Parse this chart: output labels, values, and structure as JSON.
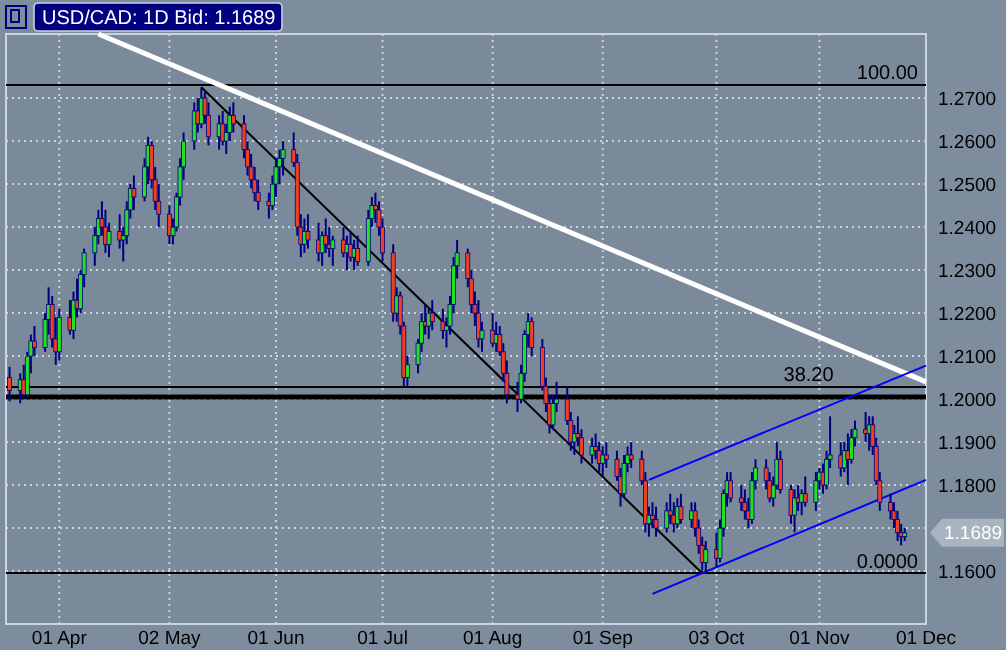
{
  "chart_data": {
    "type": "candlestick",
    "title": "USD/CAD: 1D Bid: 1.1689",
    "xlim": [
      "--03-17",
      "--12-01"
    ],
    "xticks": [
      {
        "value": "--04-01",
        "label": "01 Apr"
      },
      {
        "value": "--05-02",
        "label": "02 May"
      },
      {
        "value": "--06-01",
        "label": "01 Jun"
      },
      {
        "value": "--07-01",
        "label": "01 Jul"
      },
      {
        "value": "--08-01",
        "label": "01 Aug"
      },
      {
        "value": "--09-01",
        "label": "01 Sep"
      },
      {
        "value": "--10-03",
        "label": "03 Oct"
      },
      {
        "value": "--11-01",
        "label": "01 Nov"
      },
      {
        "value": "--12-01",
        "label": "01 Dec"
      }
    ],
    "ylim": [
      1.1477,
      1.2849
    ],
    "yticks": [
      {
        "value": 1.16,
        "label": "1.1600"
      },
      {
        "value": 1.17,
        "label": null
      },
      {
        "value": 1.18,
        "label": "1.1800"
      },
      {
        "value": 1.19,
        "label": "1.1900"
      },
      {
        "value": 1.2,
        "label": "1.2000"
      },
      {
        "value": 1.21,
        "label": "1.2100"
      },
      {
        "value": 1.22,
        "label": "1.2200"
      },
      {
        "value": 1.23,
        "label": "1.2300"
      },
      {
        "value": 1.24,
        "label": "1.2400"
      },
      {
        "value": 1.25,
        "label": "1.2500"
      },
      {
        "value": 1.26,
        "label": "1.2600"
      },
      {
        "value": 1.27,
        "label": "1.2700"
      }
    ],
    "grid": true,
    "color": "#000080",
    "colors": [
      "#f04020",
      "#22e022",
      "#f04020",
      "#22e022",
      "#22e022",
      "#f04020",
      "#22e022",
      "#22e022",
      "#f04020",
      "#f04020",
      "#22e022",
      "#f04020",
      "#22e022",
      "#f04020",
      "#22e022",
      "#22e022",
      "#22e022",
      "#22e022",
      "#f04020",
      "#f04020",
      "#22e022",
      "#f04020",
      "#22e022",
      "#22e022",
      "#22e022",
      "#f04020",
      "#22e022",
      "#22e022",
      "#f04020",
      "#f04020",
      "#f04020",
      "#f04020",
      "#22e022",
      "#22e022",
      "#22e022",
      "#22e022",
      "#22e022",
      "#f04020",
      "#22e022",
      "#f04020",
      "#f04020",
      "#22e022",
      "#f04020",
      "#22e022",
      "#22e022",
      "#f04020",
      "#f04020",
      "#f04020",
      "#f04020",
      "#f04020",
      "#f04020",
      "#f04020",
      "#22e022",
      "#22e022",
      "#22e022",
      "#22e022",
      "#f04020",
      "#f04020",
      "#f04020",
      "#22e022",
      "#f04020",
      "#f04020",
      "#22e022",
      "#f04020",
      "#f04020",
      "#22e022",
      "#f04020",
      "#22e022",
      "#f04020",
      "#22e022",
      "#f04020",
      "#22e022",
      "#22e022",
      "#f04020",
      "#f04020",
      "#f04020",
      "#f04020",
      "#22e022",
      "#f04020",
      "#f04020",
      "#22e022",
      "#22e022",
      "#22e022",
      "#f04020",
      "#22e022",
      "#f04020",
      "#f04020",
      "#22e022",
      "#22e022",
      "#22e022",
      "#22e022",
      "#f04020",
      "#f04020",
      "#f04020",
      "#f04020",
      "#22e022",
      "#f04020",
      "#22e022",
      "#f04020",
      "#f04020",
      "#f04020",
      "#f04020",
      "#22e022",
      "#22e022",
      "#22e022",
      "#f04020",
      "#f04020",
      "#f04020",
      "#f04020",
      "#22e022",
      "#22e022",
      "#f04020",
      "#f04020",
      "#22e022",
      "#f04020",
      "#f04020",
      "#22e022",
      "#f04020",
      "#f04020",
      "#22e022",
      "#f04020",
      "#f04020",
      "#f04020",
      "#22e022",
      "#22e022",
      "#f04020",
      "#f04020",
      "#f04020",
      "#22e022",
      "#f04020",
      "#f04020",
      "#22e022",
      "#f04020",
      "#f04020",
      "#22e022",
      "#f04020",
      "#22e022",
      "#f04020",
      "#f04020",
      "#f04020",
      "#22e022",
      "#f04020",
      "#22e022",
      "#22e022",
      "#22e022",
      "#f04020",
      "#f04020",
      "#f04020",
      "#f04020",
      "#22e022",
      "#22e022",
      "#f04020",
      "#f04020",
      "#22e022",
      "#22e022",
      "#f04020",
      "#f04020",
      "#22e022",
      "#f04020",
      "#22e022",
      "#f04020",
      "#22e022",
      "#22e022",
      "#f04020",
      "#22e022",
      "#22e022",
      "#f04020",
      "#22e022",
      "#f04020",
      "#22e022",
      "#22e022",
      "#f04020",
      "#22e022",
      "#f04020",
      "#f04020",
      "#f04020",
      "#f04020",
      "#f04020",
      "#f04020",
      "#f04020",
      "#22e022"
    ],
    "x": [
      "--03-18",
      "--03-21",
      "--03-22",
      "--03-23",
      "--03-24",
      "--03-25",
      "--03-28",
      "--03-29",
      "--03-30",
      "--03-31",
      "--04-01",
      "--04-04",
      "--04-05",
      "--04-06",
      "--04-07",
      "--04-08",
      "--04-11",
      "--04-12",
      "--04-13",
      "--04-14",
      "--04-15",
      "--04-18",
      "--04-19",
      "--04-20",
      "--04-21",
      "--04-22",
      "--04-25",
      "--04-26",
      "--04-27",
      "--04-28",
      "--04-29",
      "--05-02",
      "--05-03",
      "--05-04",
      "--05-05",
      "--05-06",
      "--05-09",
      "--05-10",
      "--05-11",
      "--05-12",
      "--05-13",
      "--05-16",
      "--05-17",
      "--05-18",
      "--05-19",
      "--05-20",
      "--05-23",
      "--05-24",
      "--05-25",
      "--05-26",
      "--05-27",
      "--05-30",
      "--05-31",
      "--06-01",
      "--06-02",
      "--06-03",
      "--06-06",
      "--06-07",
      "--06-08",
      "--06-09",
      "--06-10",
      "--06-13",
      "--06-14",
      "--06-15",
      "--06-16",
      "--06-17",
      "--06-20",
      "--06-21",
      "--06-22",
      "--06-23",
      "--06-24",
      "--06-27",
      "--06-28",
      "--06-29",
      "--06-30",
      "--07-01",
      "--07-04",
      "--07-05",
      "--07-06",
      "--07-07",
      "--07-08",
      "--07-11",
      "--07-12",
      "--07-13",
      "--07-14",
      "--07-15",
      "--07-18",
      "--07-19",
      "--07-20",
      "--07-21",
      "--07-22",
      "--07-25",
      "--07-26",
      "--07-27",
      "--07-28",
      "--07-29",
      "--08-01",
      "--08-02",
      "--08-03",
      "--08-04",
      "--08-05",
      "--08-08",
      "--08-09",
      "--08-10",
      "--08-11",
      "--08-12",
      "--08-15",
      "--08-16",
      "--08-17",
      "--08-18",
      "--08-19",
      "--08-22",
      "--08-23",
      "--08-24",
      "--08-25",
      "--08-26",
      "--08-29",
      "--08-30",
      "--08-31",
      "--09-01",
      "--09-02",
      "--09-05",
      "--09-06",
      "--09-07",
      "--09-08",
      "--09-09",
      "--09-12",
      "--09-13",
      "--09-14",
      "--09-15",
      "--09-16",
      "--09-19",
      "--09-20",
      "--09-21",
      "--09-22",
      "--09-23",
      "--09-26",
      "--09-27",
      "--09-28",
      "--09-29",
      "--09-30",
      "--10-03",
      "--10-04",
      "--10-05",
      "--10-06",
      "--10-07",
      "--10-10",
      "--10-11",
      "--10-12",
      "--10-13",
      "--10-14",
      "--10-17",
      "--10-18",
      "--10-19",
      "--10-20",
      "--10-21",
      "--10-24",
      "--10-25",
      "--10-26",
      "--10-27",
      "--10-28",
      "--10-31",
      "--11-01",
      "--11-02",
      "--11-03",
      "--11-04",
      "--11-07",
      "--11-08",
      "--11-09",
      "--11-10",
      "--11-11",
      "--11-14",
      "--11-15",
      "--11-16",
      "--11-17",
      "--11-18",
      "--11-21",
      "--11-22",
      "--11-23",
      "--11-24",
      "--11-25"
    ],
    "ohlc": [
      [
        1.205,
        1.2075,
        1.1995,
        1.202
      ],
      [
        1.202,
        1.206,
        1.199,
        1.2045
      ],
      [
        1.2045,
        1.208,
        1.2,
        1.201
      ],
      [
        1.201,
        1.211,
        1.2005,
        1.21
      ],
      [
        1.21,
        1.215,
        1.206,
        1.2135
      ],
      [
        1.2135,
        1.217,
        1.21,
        1.212
      ],
      [
        1.212,
        1.22,
        1.211,
        1.2185
      ],
      [
        1.2185,
        1.226,
        1.215,
        1.222
      ],
      [
        1.222,
        1.224,
        1.212,
        1.214
      ],
      [
        1.214,
        1.219,
        1.208,
        1.211
      ],
      [
        1.211,
        1.221,
        1.209,
        1.219
      ],
      [
        1.219,
        1.223,
        1.215,
        1.216
      ],
      [
        1.216,
        1.225,
        1.214,
        1.223
      ],
      [
        1.223,
        1.228,
        1.219,
        1.221
      ],
      [
        1.221,
        1.23,
        1.22,
        1.229
      ],
      [
        1.229,
        1.235,
        1.226,
        1.234
      ],
      [
        1.234,
        1.24,
        1.231,
        1.238
      ],
      [
        1.238,
        1.244,
        1.236,
        1.242
      ],
      [
        1.242,
        1.246,
        1.238,
        1.24
      ],
      [
        1.24,
        1.244,
        1.234,
        1.236
      ],
      [
        1.236,
        1.241,
        1.233,
        1.239
      ],
      [
        1.239,
        1.243,
        1.235,
        1.237
      ],
      [
        1.237,
        1.24,
        1.232,
        1.238
      ],
      [
        1.238,
        1.246,
        1.236,
        1.244
      ],
      [
        1.244,
        1.25,
        1.242,
        1.249
      ],
      [
        1.249,
        1.252,
        1.244,
        1.247
      ],
      [
        1.247,
        1.256,
        1.246,
        1.254
      ],
      [
        1.254,
        1.261,
        1.25,
        1.259
      ],
      [
        1.259,
        1.26,
        1.249,
        1.251
      ],
      [
        1.251,
        1.254,
        1.244,
        1.246
      ],
      [
        1.246,
        1.25,
        1.24,
        1.243
      ],
      [
        1.243,
        1.245,
        1.236,
        1.238
      ],
      [
        1.238,
        1.242,
        1.236,
        1.24
      ],
      [
        1.24,
        1.248,
        1.239,
        1.247
      ],
      [
        1.247,
        1.256,
        1.245,
        1.254
      ],
      [
        1.254,
        1.262,
        1.251,
        1.26
      ],
      [
        1.26,
        1.269,
        1.258,
        1.267
      ],
      [
        1.267,
        1.27,
        1.262,
        1.264
      ],
      [
        1.264,
        1.2725,
        1.263,
        1.27
      ],
      [
        1.27,
        1.2715,
        1.264,
        1.266
      ],
      [
        1.266,
        1.269,
        1.259,
        1.261
      ],
      [
        1.261,
        1.266,
        1.258,
        1.264
      ],
      [
        1.264,
        1.267,
        1.259,
        1.26
      ],
      [
        1.26,
        1.264,
        1.257,
        1.262
      ],
      [
        1.262,
        1.268,
        1.26,
        1.266
      ],
      [
        1.266,
        1.269,
        1.262,
        1.264
      ],
      [
        1.264,
        1.266,
        1.256,
        1.258
      ],
      [
        1.258,
        1.26,
        1.252,
        1.254
      ],
      [
        1.254,
        1.257,
        1.249,
        1.251
      ],
      [
        1.251,
        1.254,
        1.246,
        1.248
      ],
      [
        1.248,
        1.251,
        1.244,
        1.246
      ],
      [
        1.246,
        1.248,
        1.242,
        1.245
      ],
      [
        1.245,
        1.252,
        1.244,
        1.25
      ],
      [
        1.25,
        1.256,
        1.247,
        1.254
      ],
      [
        1.254,
        1.258,
        1.25,
        1.256
      ],
      [
        1.256,
        1.26,
        1.252,
        1.258
      ],
      [
        1.258,
        1.262,
        1.254,
        1.255
      ],
      [
        1.255,
        1.257,
        1.238,
        1.24
      ],
      [
        1.24,
        1.243,
        1.233,
        1.236
      ],
      [
        1.236,
        1.242,
        1.234,
        1.239
      ],
      [
        1.239,
        1.243,
        1.235,
        1.237
      ],
      [
        1.237,
        1.241,
        1.232,
        1.234
      ],
      [
        1.234,
        1.239,
        1.231,
        1.238
      ],
      [
        1.238,
        1.242,
        1.234,
        1.236
      ],
      [
        1.236,
        1.24,
        1.233,
        1.235
      ],
      [
        1.235,
        1.238,
        1.231,
        1.237
      ],
      [
        1.237,
        1.24,
        1.233,
        1.234
      ],
      [
        1.234,
        1.238,
        1.23,
        1.236
      ],
      [
        1.236,
        1.239,
        1.232,
        1.233
      ],
      [
        1.233,
        1.237,
        1.23,
        1.235
      ],
      [
        1.235,
        1.238,
        1.231,
        1.232
      ],
      [
        1.232,
        1.244,
        1.231,
        1.242
      ],
      [
        1.242,
        1.247,
        1.24,
        1.245
      ],
      [
        1.245,
        1.248,
        1.241,
        1.244
      ],
      [
        1.244,
        1.246,
        1.238,
        1.24
      ],
      [
        1.24,
        1.242,
        1.232,
        1.234
      ],
      [
        1.234,
        1.236,
        1.218,
        1.22
      ],
      [
        1.22,
        1.226,
        1.218,
        1.224
      ],
      [
        1.224,
        1.225,
        1.215,
        1.217
      ],
      [
        1.217,
        1.218,
        1.203,
        1.205
      ],
      [
        1.205,
        1.21,
        1.203,
        1.208
      ],
      [
        1.208,
        1.214,
        1.206,
        1.213
      ],
      [
        1.213,
        1.22,
        1.211,
        1.218
      ],
      [
        1.218,
        1.222,
        1.215,
        1.217
      ],
      [
        1.217,
        1.221,
        1.214,
        1.22
      ],
      [
        1.22,
        1.223,
        1.216,
        1.218
      ],
      [
        1.218,
        1.221,
        1.214,
        1.216
      ],
      [
        1.216,
        1.219,
        1.212,
        1.217
      ],
      [
        1.217,
        1.224,
        1.215,
        1.222
      ],
      [
        1.222,
        1.233,
        1.22,
        1.231
      ],
      [
        1.231,
        1.237,
        1.228,
        1.234
      ],
      [
        1.234,
        1.235,
        1.226,
        1.228
      ],
      [
        1.228,
        1.23,
        1.22,
        1.222
      ],
      [
        1.222,
        1.225,
        1.217,
        1.22
      ],
      [
        1.22,
        1.223,
        1.212,
        1.214
      ],
      [
        1.214,
        1.218,
        1.211,
        1.216
      ],
      [
        1.216,
        1.22,
        1.212,
        1.213
      ],
      [
        1.213,
        1.218,
        1.211,
        1.215
      ],
      [
        1.215,
        1.217,
        1.21,
        1.211
      ],
      [
        1.211,
        1.213,
        1.204,
        1.206
      ],
      [
        1.206,
        1.209,
        1.199,
        1.201
      ],
      [
        1.201,
        1.204,
        1.197,
        1.2
      ],
      [
        1.2,
        1.208,
        1.199,
        1.206
      ],
      [
        1.206,
        1.216,
        1.204,
        1.215
      ],
      [
        1.215,
        1.22,
        1.212,
        1.218
      ],
      [
        1.218,
        1.219,
        1.21,
        1.212
      ],
      [
        1.212,
        1.214,
        1.202,
        1.203
      ],
      [
        1.203,
        1.205,
        1.197,
        1.199
      ],
      [
        1.199,
        1.201,
        1.192,
        1.194
      ],
      [
        1.194,
        1.201,
        1.193,
        1.199
      ],
      [
        1.199,
        1.204,
        1.197,
        1.2
      ],
      [
        1.2,
        1.203,
        1.194,
        1.195
      ],
      [
        1.195,
        1.197,
        1.188,
        1.19
      ],
      [
        1.19,
        1.194,
        1.187,
        1.192
      ],
      [
        1.192,
        1.196,
        1.189,
        1.191
      ],
      [
        1.191,
        1.193,
        1.185,
        1.187
      ],
      [
        1.187,
        1.191,
        1.185,
        1.189
      ],
      [
        1.189,
        1.192,
        1.186,
        1.188
      ],
      [
        1.188,
        1.19,
        1.183,
        1.185
      ],
      [
        1.185,
        1.189,
        1.182,
        1.187
      ],
      [
        1.187,
        1.19,
        1.184,
        1.186
      ],
      [
        1.186,
        1.188,
        1.181,
        1.182
      ],
      [
        1.182,
        1.184,
        1.175,
        1.178
      ],
      [
        1.178,
        1.187,
        1.177,
        1.185
      ],
      [
        1.185,
        1.189,
        1.183,
        1.187
      ],
      [
        1.187,
        1.19,
        1.184,
        1.186
      ],
      [
        1.186,
        1.188,
        1.18,
        1.181
      ],
      [
        1.181,
        1.183,
        1.169,
        1.171
      ],
      [
        1.171,
        1.175,
        1.168,
        1.173
      ],
      [
        1.173,
        1.176,
        1.17,
        1.172
      ],
      [
        1.172,
        1.175,
        1.168,
        1.17
      ],
      [
        1.17,
        1.176,
        1.169,
        1.174
      ],
      [
        1.174,
        1.178,
        1.171,
        1.173
      ],
      [
        1.173,
        1.176,
        1.169,
        1.171
      ],
      [
        1.171,
        1.177,
        1.17,
        1.175
      ],
      [
        1.175,
        1.178,
        1.171,
        1.172
      ],
      [
        1.172,
        1.176,
        1.17,
        1.174
      ],
      [
        1.174,
        1.176,
        1.168,
        1.17
      ],
      [
        1.17,
        1.172,
        1.164,
        1.166
      ],
      [
        1.166,
        1.168,
        1.1595,
        1.162
      ],
      [
        1.162,
        1.167,
        1.16,
        1.165
      ],
      [
        1.165,
        1.169,
        1.161,
        1.163
      ],
      [
        1.163,
        1.172,
        1.162,
        1.17
      ],
      [
        1.17,
        1.179,
        1.168,
        1.178
      ],
      [
        1.178,
        1.183,
        1.175,
        1.181
      ],
      [
        1.181,
        1.183,
        1.176,
        1.177
      ],
      [
        1.177,
        1.18,
        1.174,
        1.176
      ],
      [
        1.176,
        1.179,
        1.172,
        1.174
      ],
      [
        1.174,
        1.177,
        1.17,
        1.172
      ],
      [
        1.172,
        1.183,
        1.171,
        1.181
      ],
      [
        1.181,
        1.186,
        1.179,
        1.184
      ],
      [
        1.184,
        1.186,
        1.179,
        1.181
      ],
      [
        1.181,
        1.183,
        1.176,
        1.177
      ],
      [
        1.177,
        1.182,
        1.175,
        1.18
      ],
      [
        1.18,
        1.19,
        1.179,
        1.186
      ],
      [
        1.186,
        1.188,
        1.178,
        1.179
      ],
      [
        1.179,
        1.18,
        1.171,
        1.173
      ],
      [
        1.173,
        1.179,
        1.169,
        1.177
      ],
      [
        1.177,
        1.18,
        1.174,
        1.176
      ],
      [
        1.176,
        1.179,
        1.173,
        1.178
      ],
      [
        1.178,
        1.182,
        1.175,
        1.176
      ],
      [
        1.176,
        1.183,
        1.174,
        1.181
      ],
      [
        1.181,
        1.184,
        1.179,
        1.183
      ],
      [
        1.183,
        1.185,
        1.178,
        1.18
      ],
      [
        1.18,
        1.188,
        1.179,
        1.186
      ],
      [
        1.186,
        1.196,
        1.184,
        1.187
      ],
      [
        1.187,
        1.19,
        1.182,
        1.184
      ],
      [
        1.184,
        1.19,
        1.183,
        1.188
      ],
      [
        1.188,
        1.192,
        1.18,
        1.186
      ],
      [
        1.186,
        1.193,
        1.185,
        1.191
      ],
      [
        1.191,
        1.195,
        1.189,
        1.193
      ],
      [
        1.193,
        1.197,
        1.19,
        1.192
      ],
      [
        1.192,
        1.196,
        1.188,
        1.194
      ],
      [
        1.194,
        1.196,
        1.187,
        1.189
      ],
      [
        1.189,
        1.191,
        1.18,
        1.181
      ],
      [
        1.181,
        1.183,
        1.174,
        1.176
      ],
      [
        1.176,
        1.178,
        1.172,
        1.174
      ],
      [
        1.174,
        1.176,
        1.17,
        1.172
      ],
      [
        1.172,
        1.174,
        1.167,
        1.169
      ],
      [
        1.169,
        1.171,
        1.166,
        1.168
      ],
      [
        1.168,
        1.17,
        1.167,
        1.1689
      ]
    ],
    "series": [
      {
        "type": "line",
        "color": "#ffffff",
        "x": [
          "--04-12",
          "--12-01"
        ],
        "values": [
          1.2849,
          1.204
        ]
      },
      {
        "type": "line",
        "color": "#000000",
        "x": [
          "--05-11",
          "--09-29"
        ],
        "values": [
          1.2725,
          1.1595
        ]
      },
      {
        "type": "line",
        "color": "#0000ff",
        "x": [
          "--09-15",
          "--12-01"
        ],
        "values": [
          1.1547,
          1.1812
        ]
      },
      {
        "type": "line",
        "color": "#0000ff",
        "x": [
          "--09-14",
          "--12-01"
        ],
        "values": [
          1.1812,
          1.2078
        ]
      }
    ],
    "ref_lines": [
      {
        "axis": "y",
        "value": 1.2731,
        "color": "#000000"
      },
      {
        "axis": "y",
        "value": 1.2028,
        "color": "#000000"
      },
      {
        "axis": "y",
        "value": 1.2005,
        "color": "#000000"
      },
      {
        "axis": "y",
        "value": 1.1594,
        "color": "#000000"
      }
    ],
    "annotations": [
      {
        "text": "100.00",
        "x": "--12-01",
        "y": 1.2731
      },
      {
        "text": "38.20",
        "x": "--11-05",
        "y": 1.2028
      },
      {
        "text": "0.0000",
        "x": "--12-01",
        "y": 1.1594
      },
      {
        "text": "1.1689",
        "x": "--11-25",
        "y": 1.1689
      }
    ]
  }
}
